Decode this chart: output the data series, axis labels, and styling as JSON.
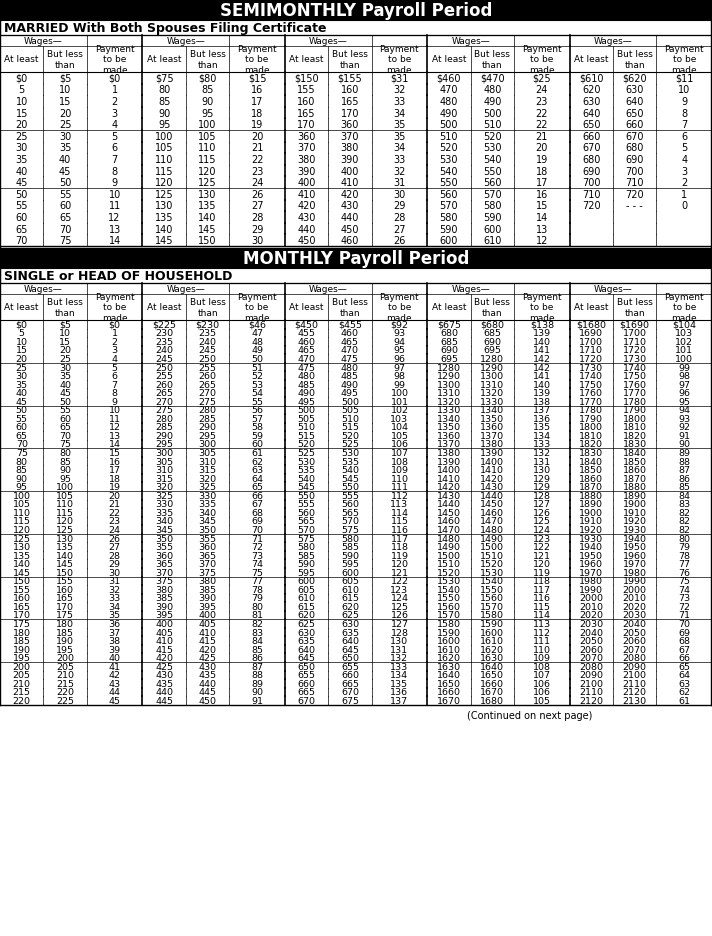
{
  "title1": "SEMIMONTHLY Payroll Period",
  "subtitle1": "MARRIED With Both Spouses Filing Certificate",
  "title2": "MONTHLY Payroll Period",
  "subtitle2": "SINGLE or HEAD OF HOUSEHOLD",
  "footer": "(Continued on next page)",
  "semi_married": [
    [
      0,
      5,
      0,
      75,
      80,
      15,
      150,
      155,
      31,
      460,
      470,
      25,
      610,
      620,
      11
    ],
    [
      5,
      10,
      1,
      80,
      85,
      16,
      155,
      160,
      32,
      470,
      480,
      24,
      620,
      630,
      10
    ],
    [
      10,
      15,
      2,
      85,
      90,
      17,
      160,
      165,
      33,
      480,
      490,
      23,
      630,
      640,
      9
    ],
    [
      15,
      20,
      3,
      90,
      95,
      18,
      165,
      170,
      34,
      490,
      500,
      22,
      640,
      650,
      8
    ],
    [
      20,
      25,
      4,
      95,
      100,
      19,
      170,
      360,
      35,
      500,
      510,
      22,
      650,
      660,
      7
    ],
    [
      25,
      30,
      5,
      100,
      105,
      20,
      360,
      370,
      35,
      510,
      520,
      21,
      660,
      670,
      6
    ],
    [
      30,
      35,
      6,
      105,
      110,
      21,
      370,
      380,
      34,
      520,
      530,
      20,
      670,
      680,
      5
    ],
    [
      35,
      40,
      7,
      110,
      115,
      22,
      380,
      390,
      33,
      530,
      540,
      19,
      680,
      690,
      4
    ],
    [
      40,
      45,
      8,
      115,
      120,
      23,
      390,
      400,
      32,
      540,
      550,
      18,
      690,
      700,
      3
    ],
    [
      45,
      50,
      9,
      120,
      125,
      24,
      400,
      410,
      31,
      550,
      560,
      17,
      700,
      710,
      2
    ],
    [
      50,
      55,
      10,
      125,
      130,
      26,
      410,
      420,
      30,
      560,
      570,
      16,
      710,
      720,
      1
    ],
    [
      55,
      60,
      11,
      130,
      135,
      27,
      420,
      430,
      29,
      570,
      580,
      15,
      720,
      -1,
      0
    ],
    [
      60,
      65,
      12,
      135,
      140,
      28,
      430,
      440,
      28,
      580,
      590,
      14,
      -1,
      -1,
      -1
    ],
    [
      65,
      70,
      13,
      140,
      145,
      29,
      440,
      450,
      27,
      590,
      600,
      13,
      -1,
      -1,
      -1
    ],
    [
      70,
      75,
      14,
      145,
      150,
      30,
      450,
      460,
      26,
      600,
      610,
      12,
      -1,
      -1,
      -1
    ]
  ],
  "monthly_single": [
    [
      0,
      5,
      0,
      225,
      230,
      46,
      450,
      455,
      92,
      675,
      680,
      138,
      1680,
      1690,
      104
    ],
    [
      5,
      10,
      1,
      230,
      235,
      47,
      455,
      460,
      93,
      680,
      685,
      139,
      1690,
      1700,
      103
    ],
    [
      10,
      15,
      2,
      235,
      240,
      48,
      460,
      465,
      94,
      685,
      690,
      140,
      1700,
      1710,
      102
    ],
    [
      15,
      20,
      3,
      240,
      245,
      49,
      465,
      470,
      95,
      690,
      695,
      141,
      1710,
      1720,
      101
    ],
    [
      20,
      25,
      4,
      245,
      250,
      50,
      470,
      475,
      96,
      695,
      1280,
      142,
      1720,
      1730,
      100
    ],
    [
      25,
      30,
      5,
      250,
      255,
      51,
      475,
      480,
      97,
      1280,
      1290,
      142,
      1730,
      1740,
      99
    ],
    [
      30,
      35,
      6,
      255,
      260,
      52,
      480,
      485,
      98,
      1290,
      1300,
      141,
      1740,
      1750,
      98
    ],
    [
      35,
      40,
      7,
      260,
      265,
      53,
      485,
      490,
      99,
      1300,
      1310,
      140,
      1750,
      1760,
      97
    ],
    [
      40,
      45,
      8,
      265,
      270,
      54,
      490,
      495,
      100,
      1310,
      1320,
      139,
      1760,
      1770,
      96
    ],
    [
      45,
      50,
      9,
      270,
      275,
      55,
      495,
      500,
      101,
      1320,
      1330,
      138,
      1770,
      1780,
      95
    ],
    [
      50,
      55,
      10,
      275,
      280,
      56,
      500,
      505,
      102,
      1330,
      1340,
      137,
      1780,
      1790,
      94
    ],
    [
      55,
      60,
      11,
      280,
      285,
      57,
      505,
      510,
      103,
      1340,
      1350,
      136,
      1790,
      1800,
      93
    ],
    [
      60,
      65,
      12,
      285,
      290,
      58,
      510,
      515,
      104,
      1350,
      1360,
      135,
      1800,
      1810,
      92
    ],
    [
      65,
      70,
      13,
      290,
      295,
      59,
      515,
      520,
      105,
      1360,
      1370,
      134,
      1810,
      1820,
      91
    ],
    [
      70,
      75,
      14,
      295,
      300,
      60,
      520,
      525,
      106,
      1370,
      1380,
      133,
      1820,
      1830,
      90
    ],
    [
      75,
      80,
      15,
      300,
      305,
      61,
      525,
      530,
      107,
      1380,
      1390,
      132,
      1830,
      1840,
      89
    ],
    [
      80,
      85,
      16,
      305,
      310,
      62,
      530,
      535,
      108,
      1390,
      1400,
      131,
      1840,
      1850,
      88
    ],
    [
      85,
      90,
      17,
      310,
      315,
      63,
      535,
      540,
      109,
      1400,
      1410,
      130,
      1850,
      1860,
      87
    ],
    [
      90,
      95,
      18,
      315,
      320,
      64,
      540,
      545,
      110,
      1410,
      1420,
      129,
      1860,
      1870,
      86
    ],
    [
      95,
      100,
      19,
      320,
      325,
      65,
      545,
      550,
      111,
      1420,
      1430,
      129,
      1870,
      1880,
      85
    ],
    [
      100,
      105,
      20,
      325,
      330,
      66,
      550,
      555,
      112,
      1430,
      1440,
      128,
      1880,
      1890,
      84
    ],
    [
      105,
      110,
      21,
      330,
      335,
      67,
      555,
      560,
      113,
      1440,
      1450,
      127,
      1890,
      1900,
      83
    ],
    [
      110,
      115,
      22,
      335,
      340,
      68,
      560,
      565,
      114,
      1450,
      1460,
      126,
      1900,
      1910,
      82
    ],
    [
      115,
      120,
      23,
      340,
      345,
      69,
      565,
      570,
      115,
      1460,
      1470,
      125,
      1910,
      1920,
      82
    ],
    [
      120,
      125,
      24,
      345,
      350,
      70,
      570,
      575,
      116,
      1470,
      1480,
      124,
      1920,
      1930,
      82
    ],
    [
      125,
      130,
      26,
      350,
      355,
      71,
      575,
      580,
      117,
      1480,
      1490,
      123,
      1930,
      1940,
      80
    ],
    [
      130,
      135,
      27,
      355,
      360,
      72,
      580,
      585,
      118,
      1490,
      1500,
      122,
      1940,
      1950,
      79
    ],
    [
      135,
      140,
      28,
      360,
      365,
      73,
      585,
      590,
      119,
      1500,
      1510,
      121,
      1950,
      1960,
      78
    ],
    [
      140,
      145,
      29,
      365,
      370,
      74,
      590,
      595,
      120,
      1510,
      1520,
      120,
      1960,
      1970,
      77
    ],
    [
      145,
      150,
      30,
      370,
      375,
      75,
      595,
      600,
      121,
      1520,
      1530,
      119,
      1970,
      1980,
      76
    ],
    [
      150,
      155,
      31,
      375,
      380,
      77,
      600,
      605,
      122,
      1530,
      1540,
      118,
      1980,
      1990,
      75
    ],
    [
      155,
      160,
      32,
      380,
      385,
      78,
      605,
      610,
      123,
      1540,
      1550,
      117,
      1990,
      2000,
      74
    ],
    [
      160,
      165,
      33,
      385,
      390,
      79,
      610,
      615,
      124,
      1550,
      1560,
      116,
      2000,
      2010,
      73
    ],
    [
      165,
      170,
      34,
      390,
      395,
      80,
      615,
      620,
      125,
      1560,
      1570,
      115,
      2010,
      2020,
      72
    ],
    [
      170,
      175,
      35,
      395,
      400,
      81,
      620,
      625,
      126,
      1570,
      1580,
      114,
      2020,
      2030,
      71
    ],
    [
      175,
      180,
      36,
      400,
      405,
      82,
      625,
      630,
      127,
      1580,
      1590,
      113,
      2030,
      2040,
      70
    ],
    [
      180,
      185,
      37,
      405,
      410,
      83,
      630,
      635,
      128,
      1590,
      1600,
      112,
      2040,
      2050,
      69
    ],
    [
      185,
      190,
      38,
      410,
      415,
      84,
      635,
      640,
      130,
      1600,
      1610,
      111,
      2050,
      2060,
      68
    ],
    [
      190,
      195,
      39,
      415,
      420,
      85,
      640,
      645,
      131,
      1610,
      1620,
      110,
      2060,
      2070,
      67
    ],
    [
      195,
      200,
      40,
      420,
      425,
      86,
      645,
      650,
      132,
      1620,
      1630,
      109,
      2070,
      2080,
      66
    ],
    [
      200,
      205,
      41,
      425,
      430,
      87,
      650,
      655,
      133,
      1630,
      1640,
      108,
      2080,
      2090,
      65
    ],
    [
      205,
      210,
      42,
      430,
      435,
      88,
      655,
      660,
      134,
      1640,
      1650,
      107,
      2090,
      2100,
      64
    ],
    [
      210,
      215,
      43,
      435,
      440,
      89,
      660,
      665,
      135,
      1650,
      1660,
      106,
      2100,
      2110,
      63
    ],
    [
      215,
      220,
      44,
      440,
      445,
      90,
      665,
      670,
      136,
      1660,
      1670,
      106,
      2110,
      2120,
      62
    ],
    [
      220,
      225,
      45,
      445,
      450,
      91,
      670,
      675,
      137,
      1670,
      1680,
      105,
      2120,
      2130,
      61
    ]
  ]
}
